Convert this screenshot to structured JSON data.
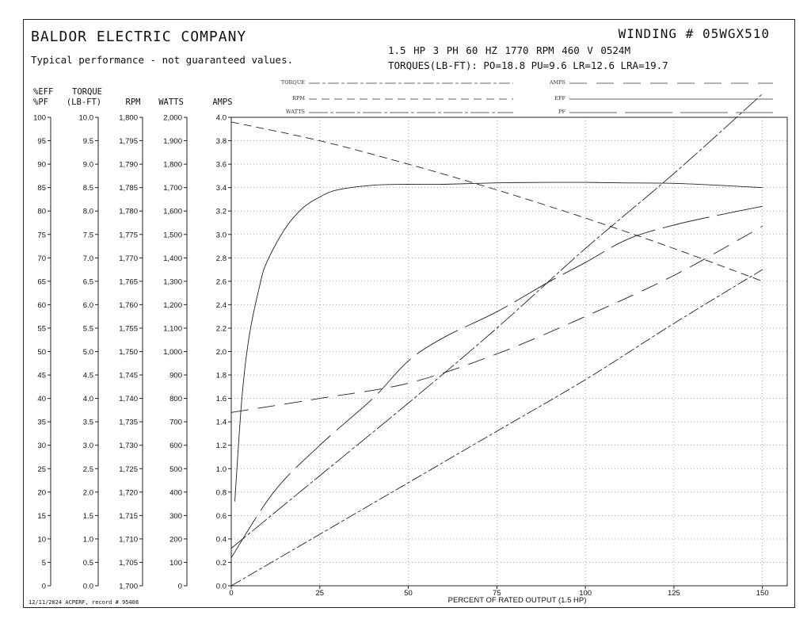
{
  "header": {
    "company": "BALDOR ELECTRIC COMPANY",
    "subtitle": "Typical performance - not guaranteed values.",
    "winding": "WINDING # 05WGX510",
    "specs": "1.5 HP  3 PH  60 HZ  1770 RPM  460 V  0524M",
    "torques": "TORQUES(LB-FT): PO=18.8  PU=9.6  LR=12.6  LRA=19.7"
  },
  "footer": "12/11/2024 ACPERF, record # 95408",
  "axis_headers": {
    "eff_pf": [
      "%EFF",
      "%PF"
    ],
    "torque": [
      "TORQUE",
      "(LB-FT)"
    ],
    "rpm": "RPM",
    "watts": "WATTS",
    "amps": "AMPS"
  },
  "chart_data": {
    "type": "line",
    "xlabel": "PERCENT OF RATED OUTPUT (1.5 HP)",
    "x_ticks": [
      0,
      25,
      50,
      75,
      100,
      125,
      150
    ],
    "xlim": [
      0,
      157
    ],
    "axes": {
      "eff_pf": {
        "min": 0,
        "max": 100,
        "step": 5,
        "ticks": [
          "100",
          "95",
          "90",
          "85",
          "80",
          "75",
          "70",
          "65",
          "60",
          "55",
          "50",
          "45",
          "40",
          "35",
          "30",
          "25",
          "20",
          "15",
          "10",
          "5",
          "0"
        ]
      },
      "torque": {
        "min": 0,
        "max": 10,
        "step": 0.5,
        "ticks": [
          "10.0",
          "9.5",
          "9.0",
          "8.5",
          "8.0",
          "7.5",
          "7.0",
          "6.5",
          "6.0",
          "5.5",
          "5.0",
          "4.5",
          "4.0",
          "3.5",
          "3.0",
          "2.5",
          "2.0",
          "1.5",
          "1.0",
          "0.5",
          "0.0"
        ]
      },
      "rpm": {
        "min": 1700,
        "max": 1800,
        "step": 5,
        "ticks": [
          "1,800",
          "1,795",
          "1,790",
          "1,785",
          "1,780",
          "1,775",
          "1,770",
          "1,765",
          "1,760",
          "1,755",
          "1,750",
          "1,745",
          "1,740",
          "1,735",
          "1,730",
          "1,725",
          "1,720",
          "1,715",
          "1,710",
          "1,705",
          "1,700"
        ]
      },
      "watts": {
        "min": 0,
        "max": 2000,
        "step": 100,
        "ticks": [
          "2,000",
          "1,900",
          "1,800",
          "1,700",
          "1,600",
          "1,500",
          "1,400",
          "1,300",
          "1,200",
          "1,100",
          "1,000",
          "900",
          "800",
          "700",
          "600",
          "500",
          "400",
          "300",
          "200",
          "100",
          "0"
        ]
      },
      "amps": {
        "min": 0,
        "max": 4,
        "step": 0.2,
        "ticks": [
          "4.0",
          "3.8",
          "3.6",
          "3.4",
          "3.2",
          "3.0",
          "2.8",
          "2.6",
          "2.4",
          "2.2",
          "2.0",
          "1.8",
          "1.6",
          "1.4",
          "1.2",
          "1.0",
          "0.8",
          "0.6",
          "0.4",
          "0.2",
          "0.0"
        ]
      }
    },
    "legend": [
      {
        "name": "TORQUE",
        "dash": "14,3,4,3"
      },
      {
        "name": "RPM",
        "dash": "10,6"
      },
      {
        "name": "WATTS",
        "dash": "24,3,4,3"
      },
      {
        "name": "AMPS",
        "dash": "22,12"
      },
      {
        "name": "EFF",
        "dash": ""
      },
      {
        "name": "PF",
        "dash": "60,10"
      }
    ],
    "series": [
      {
        "name": "EFF",
        "axis": "eff_pf",
        "dash": "",
        "x": [
          1,
          3,
          5,
          8,
          10,
          15,
          20,
          25,
          30,
          40,
          50,
          60,
          75,
          90,
          100,
          110,
          125,
          140,
          150
        ],
        "y": [
          18,
          40,
          53,
          64,
          69,
          76,
          80.5,
          83,
          84.5,
          85.5,
          85.7,
          85.7,
          86,
          86.1,
          86.1,
          86,
          85.9,
          85.4,
          85
        ]
      },
      {
        "name": "PF",
        "axis": "eff_pf",
        "dash": "60,10",
        "x": [
          0,
          12,
          25,
          40,
          50,
          60,
          75,
          90,
          100,
          112,
          125,
          140,
          150
        ],
        "y": [
          6,
          20,
          30,
          40,
          48,
          53,
          58.5,
          65,
          69,
          74,
          77,
          79.5,
          81
        ]
      },
      {
        "name": "RPM",
        "axis": "rpm",
        "dash": "10,6",
        "x": [
          0,
          25,
          50,
          75,
          100,
          125,
          150
        ],
        "y": [
          1799,
          1795,
          1790,
          1784.5,
          1778.5,
          1772,
          1765
        ]
      },
      {
        "name": "AMPS",
        "axis": "amps",
        "dash": "22,12",
        "x": [
          0,
          25,
          50,
          75,
          100,
          125,
          150
        ],
        "y": [
          1.48,
          1.6,
          1.73,
          1.98,
          2.3,
          2.65,
          3.07
        ]
      },
      {
        "name": "WATTS",
        "axis": "watts",
        "dash": "24,3,4,3",
        "x": [
          0,
          25,
          50,
          75,
          100,
          125,
          150
        ],
        "y": [
          160,
          470,
          780,
          1100,
          1440,
          1760,
          2100
        ]
      },
      {
        "name": "TORQUE",
        "axis": "torque",
        "dash": "14,3,4,3",
        "x": [
          0,
          25,
          50,
          75,
          100,
          125,
          150
        ],
        "y": [
          0,
          1.1,
          2.2,
          3.3,
          4.4,
          5.6,
          6.75
        ]
      }
    ]
  }
}
